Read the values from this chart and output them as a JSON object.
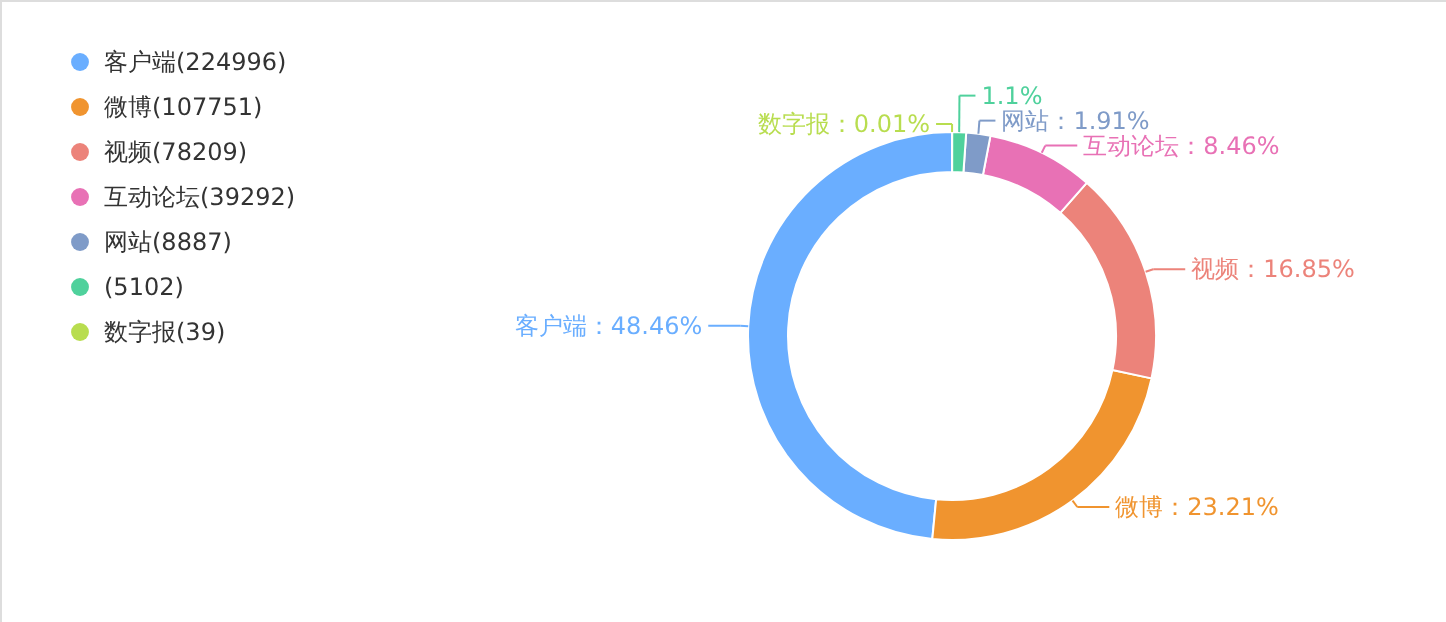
{
  "chart_data": {
    "type": "donut",
    "categories": [
      "客户端(224996)",
      "微博(107751)",
      "视频(78209)",
      "互动论坛(39292)",
      "网站(8887)",
      "(5102)",
      "数字报(39)"
    ],
    "values": [
      48.46,
      23.21,
      16.85,
      8.46,
      1.91,
      1.1,
      0.01
    ],
    "colors": [
      "#6aaeff",
      "#f0942f",
      "#ec837a",
      "#e871b5",
      "#7f9bc8",
      "#4fd19c",
      "#b8dd4f"
    ],
    "value_labels": [
      "客户端：48.46%",
      "微博：23.21%",
      "视频：16.85%",
      "互动论坛：8.46%",
      "网站：1.91%",
      "1.1%",
      "数字报：0.01%"
    ],
    "legend": "top left"
  }
}
